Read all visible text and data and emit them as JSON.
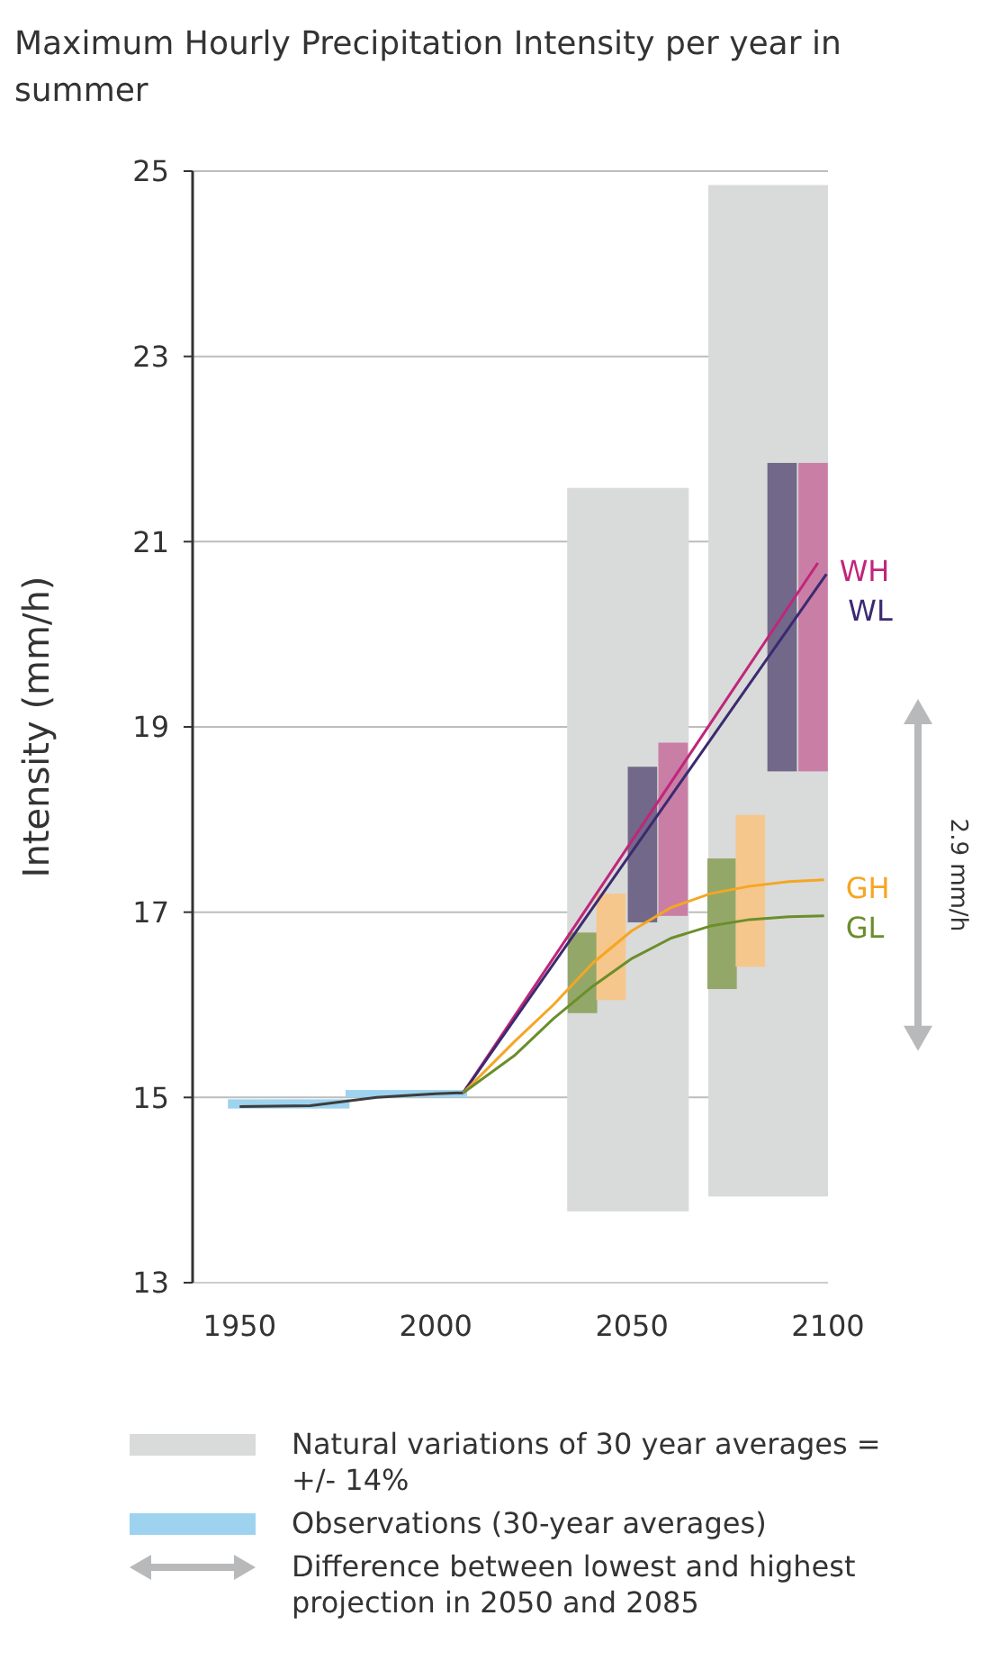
{
  "chart_data": {
    "type": "line",
    "title": "Maximum Hourly Precipitation Intensity per year in summer",
    "ylabel": "Intensity (mm/h)",
    "xlim": [
      1938,
      2100
    ],
    "xticks": [
      1950,
      2000,
      2050,
      2100
    ],
    "ylim": [
      13,
      25
    ],
    "yticks": [
      13,
      15,
      17,
      19,
      21,
      23,
      25
    ],
    "grid": "y",
    "legend": "bottom",
    "series": [
      {
        "type": "bar",
        "name": "Natural variations of 30 year averages = +/- 14%",
        "color": "#d9dada",
        "x": [
          2049,
          2085
        ],
        "base": [
          13.77,
          13.93
        ],
        "values": [
          7.81,
          10.92
        ]
      },
      {
        "type": "bar",
        "name": "Observations (30-year averages)",
        "color": "#9dd3ef",
        "x": [
          1962.5,
          1992.5
        ],
        "base": [
          14.88,
          15.0
        ],
        "values": [
          0.1,
          0.08
        ]
      },
      {
        "type": "bar",
        "color": "#93a868",
        "x": [
          2037.4,
          2073
        ],
        "base": [
          15.91,
          16.17
        ],
        "values": [
          0.87,
          1.41
        ]
      },
      {
        "type": "bar",
        "color": "#f5c78c",
        "x": [
          2044.7,
          2080.2
        ],
        "base": [
          16.05,
          16.41
        ],
        "values": [
          1.15,
          1.64
        ]
      },
      {
        "type": "bar",
        "color": "#726889",
        "x": [
          2052.7,
          2088.3
        ],
        "base": [
          16.89,
          18.52
        ],
        "values": [
          1.68,
          3.33
        ]
      },
      {
        "type": "bar",
        "color": "#c97ea6",
        "x": [
          2060.5,
          2096.2
        ],
        "base": [
          16.96,
          18.52
        ],
        "values": [
          1.87,
          3.33
        ]
      },
      {
        "color": "#3d3d3d",
        "x": [
          1950,
          1968,
          1985,
          2000,
          2007
        ],
        "values": [
          14.9,
          14.91,
          15.0,
          15.04,
          15.05
        ]
      },
      {
        "name": "WH",
        "color": "#c0267a",
        "x": [
          2007,
          2097.4
        ],
        "values": [
          15.05,
          20.77
        ]
      },
      {
        "name": "WL",
        "color": "#3b2a70",
        "x": [
          2007,
          2099.6
        ],
        "values": [
          15.05,
          20.65
        ]
      },
      {
        "name": "GH",
        "color": "#f5a623",
        "x": [
          2007,
          2020,
          2030,
          2040,
          2050,
          2060,
          2070,
          2080,
          2090,
          2099
        ],
        "values": [
          15.05,
          15.6,
          16.0,
          16.45,
          16.8,
          17.05,
          17.2,
          17.28,
          17.33,
          17.35
        ]
      },
      {
        "name": "GL",
        "color": "#6b8e2b",
        "x": [
          2007,
          2020,
          2030,
          2040,
          2050,
          2060,
          2070,
          2080,
          2090,
          2099
        ],
        "values": [
          15.05,
          15.45,
          15.85,
          16.2,
          16.5,
          16.72,
          16.85,
          16.92,
          16.95,
          16.96
        ]
      }
    ],
    "annotations": [
      "2.9 mm/h",
      "Difference between lowest and highest projection in 2050 and 2085"
    ]
  }
}
